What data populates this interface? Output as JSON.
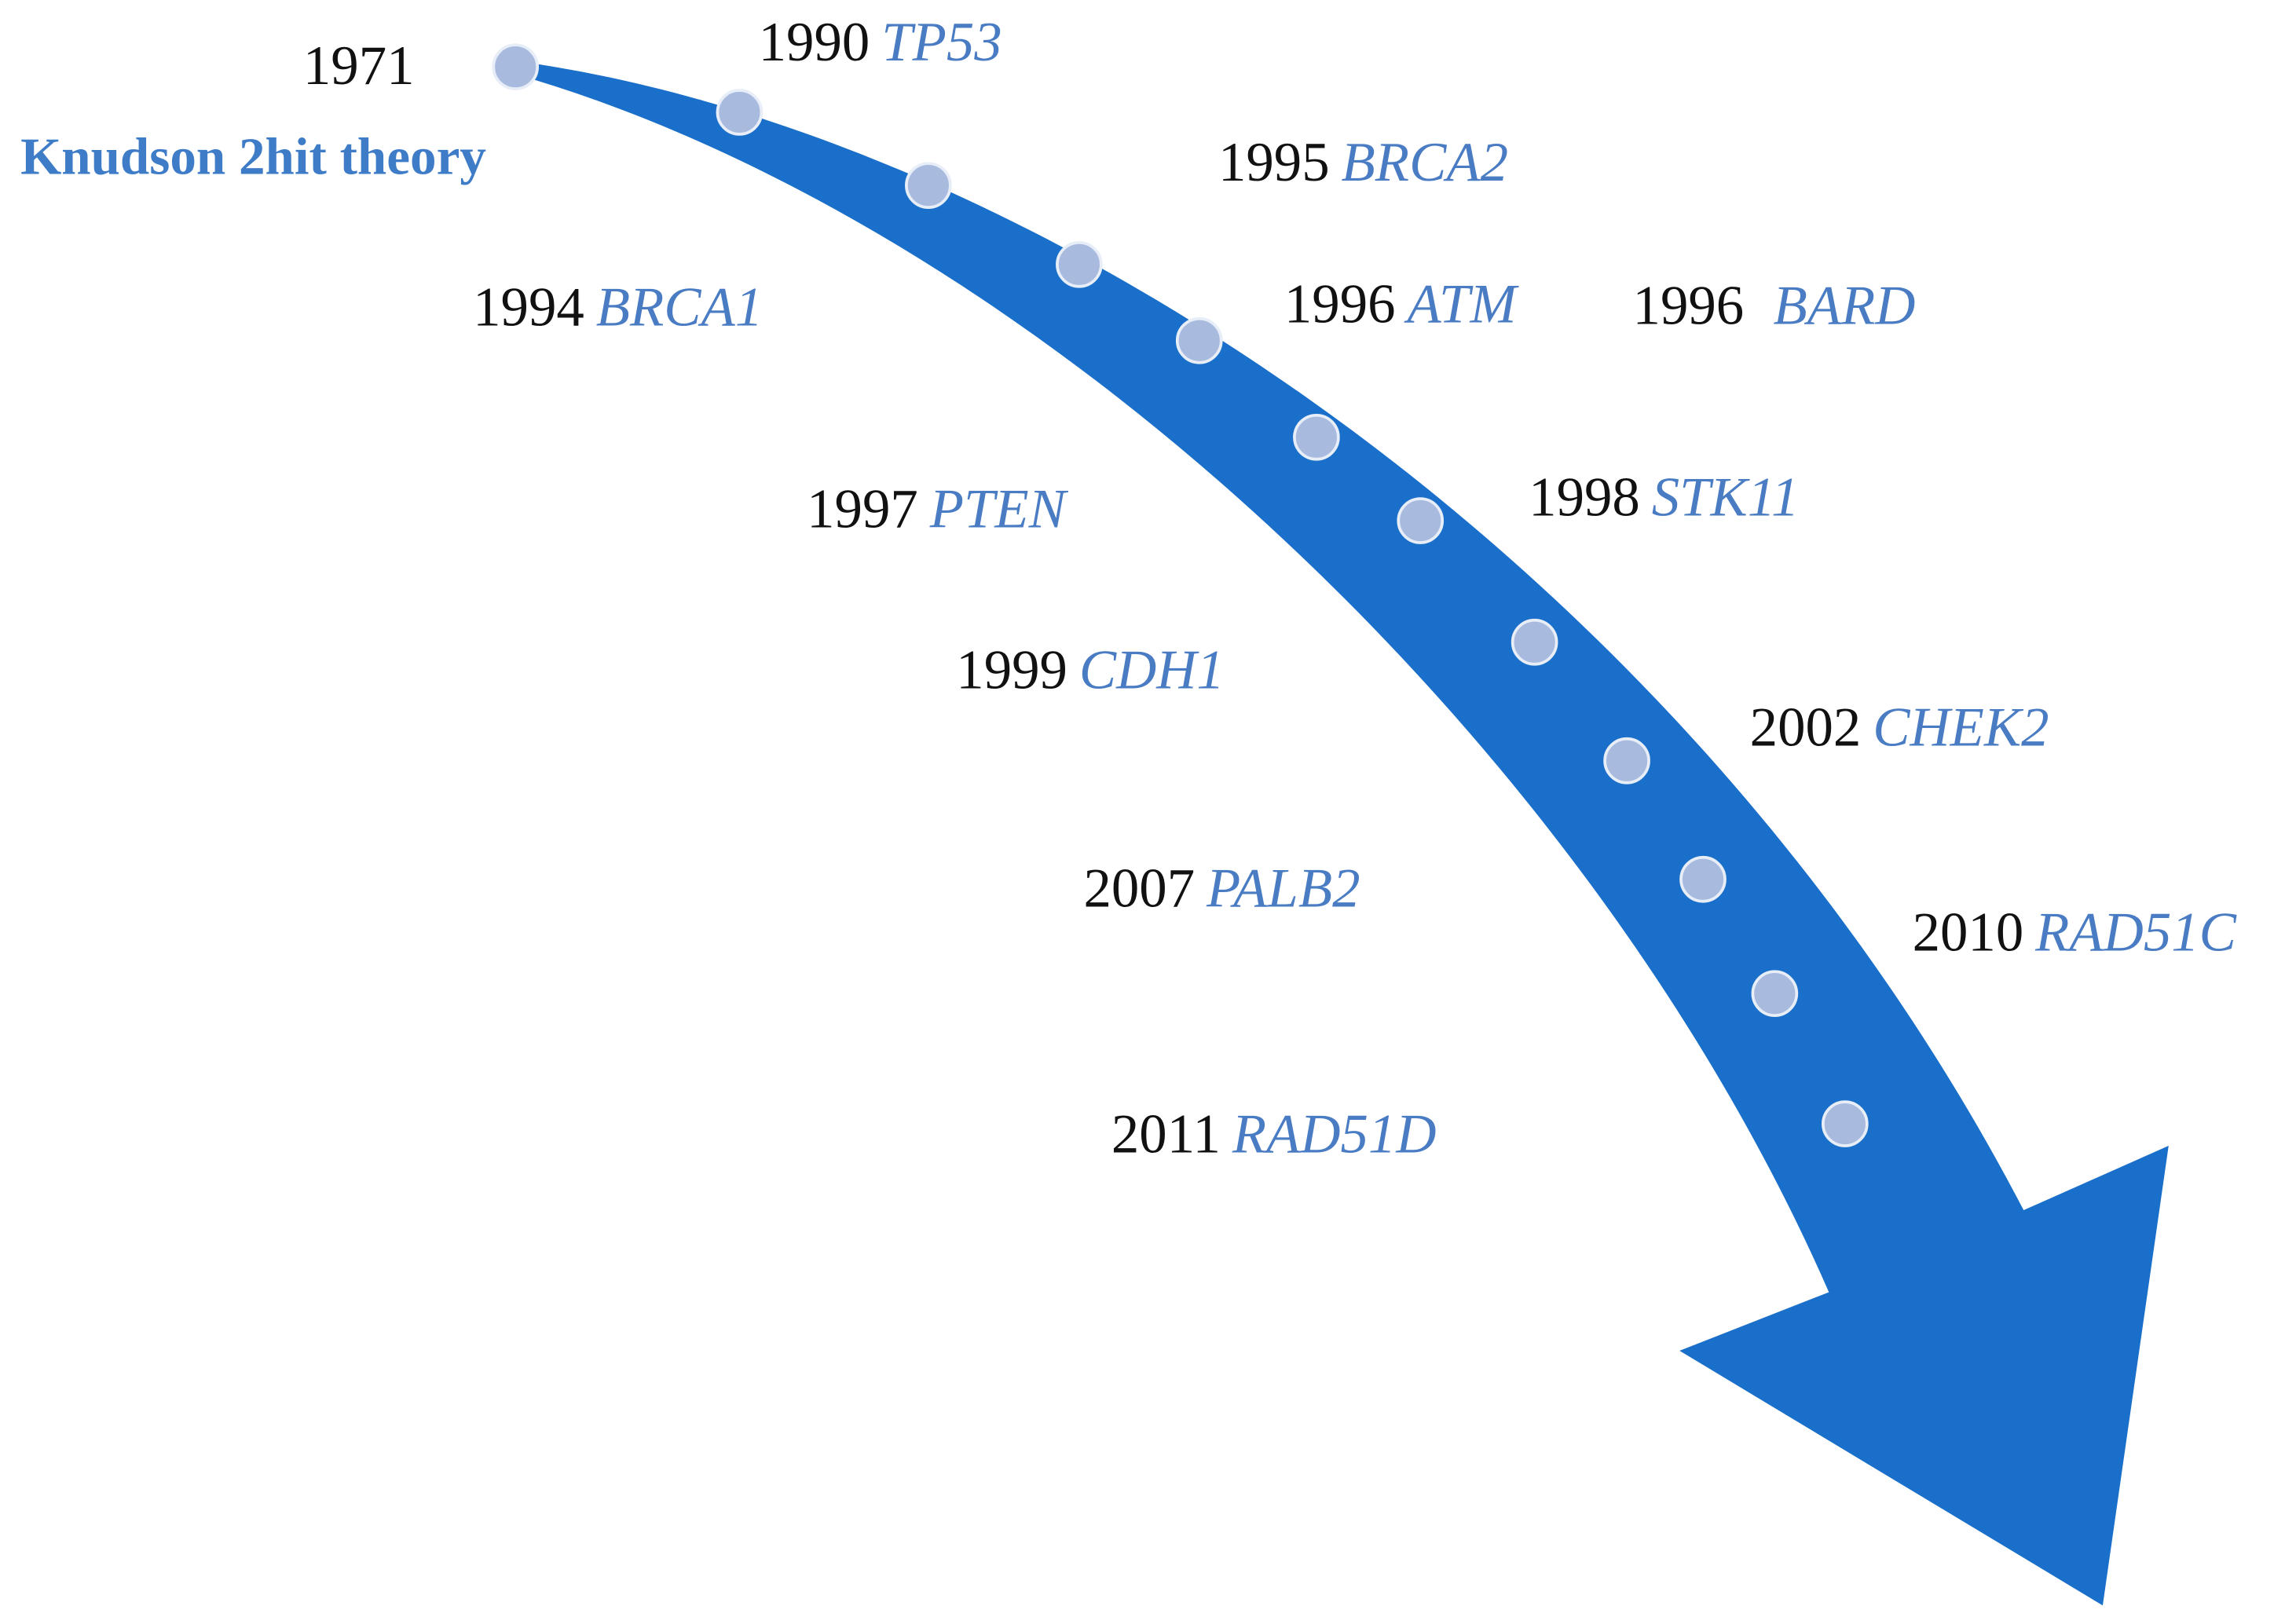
{
  "origin": {
    "year": "1971",
    "label": "Knudson 2hit theory"
  },
  "events": [
    {
      "year": "1990",
      "gene": "TP53"
    },
    {
      "year": "1995",
      "gene": "BRCA2"
    },
    {
      "year": "1994",
      "gene": "BRCA1"
    },
    {
      "year": "1996",
      "gene": "ATM"
    },
    {
      "year": "1996",
      "gene": "BARD"
    },
    {
      "year": "1997",
      "gene": "PTEN"
    },
    {
      "year": "1998",
      "gene": "STK11"
    },
    {
      "year": "1999",
      "gene": "CDH1"
    },
    {
      "year": "2002",
      "gene": "CHEK2"
    },
    {
      "year": "2007",
      "gene": "PALB2"
    },
    {
      "year": "2010",
      "gene": "RAD51C"
    },
    {
      "year": "2011",
      "gene": "RAD51D"
    }
  ]
}
